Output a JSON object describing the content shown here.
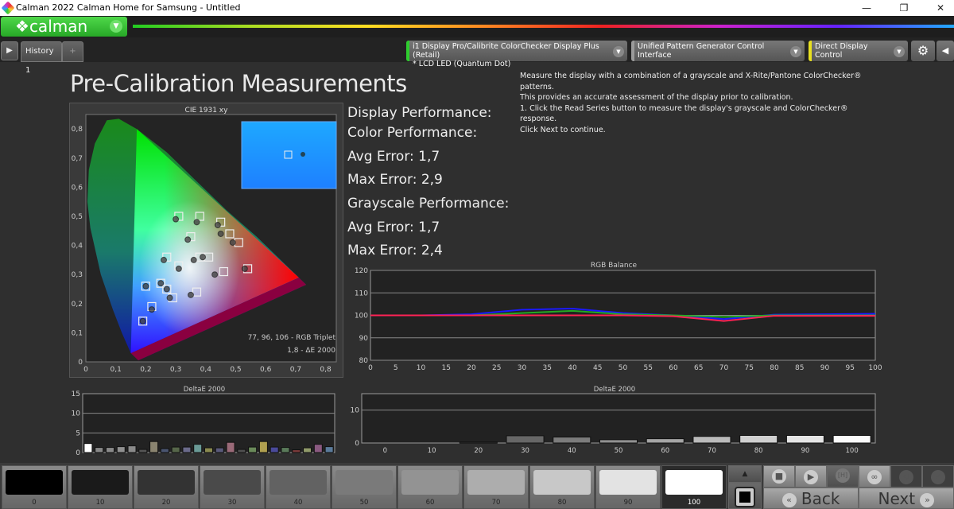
{
  "window": {
    "title": "Calman 2022 Calman Home for Samsung  - Untitled",
    "minimize": "—",
    "maximize": "❐",
    "close": "✕"
  },
  "logo": {
    "text": "calman",
    "icon": "diamond-logo-icon"
  },
  "tabs": {
    "history": "History 1",
    "add": "+"
  },
  "devices": [
    {
      "line1": "i1 Display Pro/Calibrite ColorChecker Display Plus (Retail)",
      "line2": "* LCD LED (Quantum Dot)",
      "accent": "#2ecc2e"
    },
    {
      "line1": "Unified Pattern Generator Control Interface",
      "line2": "",
      "accent": "#9a9a9a"
    },
    {
      "line1": "Direct Display Control",
      "line2": "",
      "accent": "#e8e020"
    }
  ],
  "page": {
    "title": "Pre-Calibration Measurements",
    "instructions": [
      "Measure the display with a combination of a grayscale and X-Rite/Pantone ColorChecker® patterns.",
      "This provides an accurate assessment of the display prior to calibration.",
      "1. Click the Read Series button to measure the display's grayscale and ColorChecker® response.",
      "Click Next to continue."
    ]
  },
  "performance": {
    "display": "Display Performance:",
    "color": "Color Performance:",
    "color_avg": "Avg Error: 1,7",
    "color_max": "Max Error: 2,9",
    "grayscale": "Grayscale Performance:",
    "gray_avg": "Avg Error: 1,7",
    "gray_max": "Max Error: 2,4"
  },
  "chart_data": [
    {
      "type": "scatter",
      "title": "CIE 1931 xy",
      "xlim": [
        0,
        0.85
      ],
      "ylim": [
        0,
        0.85
      ],
      "xticks": [
        "0",
        "0,1",
        "0,2",
        "0,3",
        "0,4",
        "0,5",
        "0,6",
        "0,7",
        "0,8"
      ],
      "yticks": [
        "0",
        "0,1",
        "0,2",
        "0,3",
        "0,4",
        "0,5",
        "0,6",
        "0,7",
        "0,8"
      ],
      "gamut": {
        "red": [
          0.71,
          0.29
        ],
        "green": [
          0.17,
          0.8
        ],
        "blue": [
          0.15,
          0.03
        ]
      },
      "targets": [
        [
          0.31,
          0.5
        ],
        [
          0.38,
          0.5
        ],
        [
          0.45,
          0.48
        ],
        [
          0.48,
          0.44
        ],
        [
          0.51,
          0.41
        ],
        [
          0.35,
          0.43
        ],
        [
          0.27,
          0.36
        ],
        [
          0.38,
          0.36
        ],
        [
          0.41,
          0.36
        ],
        [
          0.31,
          0.33
        ],
        [
          0.46,
          0.31
        ],
        [
          0.54,
          0.32
        ],
        [
          0.2,
          0.26
        ],
        [
          0.25,
          0.27
        ],
        [
          0.27,
          0.25
        ],
        [
          0.29,
          0.22
        ],
        [
          0.37,
          0.24
        ],
        [
          0.22,
          0.19
        ],
        [
          0.19,
          0.14
        ]
      ],
      "measured": [
        [
          0.3,
          0.49
        ],
        [
          0.37,
          0.48
        ],
        [
          0.44,
          0.47
        ],
        [
          0.45,
          0.44
        ],
        [
          0.49,
          0.41
        ],
        [
          0.34,
          0.42
        ],
        [
          0.26,
          0.35
        ],
        [
          0.36,
          0.35
        ],
        [
          0.39,
          0.36
        ],
        [
          0.31,
          0.32
        ],
        [
          0.43,
          0.3
        ],
        [
          0.53,
          0.32
        ],
        [
          0.2,
          0.26
        ],
        [
          0.25,
          0.27
        ],
        [
          0.27,
          0.25
        ],
        [
          0.28,
          0.22
        ],
        [
          0.35,
          0.23
        ],
        [
          0.22,
          0.18
        ],
        [
          0.19,
          0.14
        ]
      ],
      "annotation1": "77, 96, 106 - RGB Triplet",
      "annotation2": "1,8 - ΔE 2000",
      "swatch_color": "#1e90ff"
    },
    {
      "type": "line",
      "title": "RGB Balance",
      "xlim": [
        0,
        100
      ],
      "ylim": [
        80,
        120
      ],
      "xticks": [
        "0",
        "5",
        "10",
        "15",
        "20",
        "25",
        "30",
        "35",
        "40",
        "45",
        "50",
        "55",
        "60",
        "65",
        "70",
        "75",
        "80",
        "85",
        "90",
        "95",
        "100"
      ],
      "yticks": [
        "80",
        "90",
        "100",
        "110",
        "120"
      ],
      "x": [
        0,
        10,
        20,
        30,
        40,
        50,
        60,
        70,
        80,
        90,
        100
      ],
      "series": [
        {
          "color": "#1a1aff",
          "values": [
            100,
            100,
            100.5,
            102.5,
            103,
            101,
            100,
            98.3,
            100.3,
            100.5,
            100.7
          ]
        },
        {
          "color": "#22aa22",
          "values": [
            100,
            100,
            100,
            101,
            102,
            100.5,
            100,
            99.3,
            100,
            100,
            100
          ]
        },
        {
          "color": "#ff2255",
          "values": [
            100,
            100,
            100,
            100,
            100,
            100,
            99.6,
            97.5,
            99.8,
            99.8,
            99.8
          ]
        }
      ]
    },
    {
      "type": "bar",
      "title": "DeltaE 2000",
      "ylim": [
        0,
        15
      ],
      "yticks": [
        "0",
        "5",
        "10",
        "15"
      ],
      "values": [
        2.3,
        1.3,
        1.3,
        1.5,
        1.7,
        0.8,
        2.8,
        1.0,
        1.4,
        1.4,
        2.1,
        1.2,
        1.2,
        2.6,
        0.8,
        1.4,
        2.8,
        1.4,
        1.3,
        0.7,
        1.2,
        2.1,
        1.5
      ],
      "colors": [
        "#ffffff",
        "#888888",
        "#8a8a8a",
        "#909090",
        "#8a8a8a",
        "#555555",
        "#8a8470",
        "#4a5570",
        "#56664a",
        "#6a6a8a",
        "#6a9a96",
        "#8a8a50",
        "#5a5a7a",
        "#9a6a78",
        "#505050",
        "#6a8a5a",
        "#b0a050",
        "#4a4a9a",
        "#5a7a5a",
        "#7a3a3a",
        "#909a6a",
        "#8a5a80",
        "#5a7a9a"
      ]
    },
    {
      "type": "bar",
      "title": "DeltaE 2000",
      "ylim": [
        0,
        15
      ],
      "yticks": [
        "0",
        "10"
      ],
      "categories": [
        "0",
        "10",
        "20",
        "30",
        "40",
        "50",
        "60",
        "70",
        "80",
        "90",
        "100"
      ],
      "values": [
        0,
        0,
        0.3,
        2.2,
        1.8,
        1.0,
        1.3,
        2.0,
        2.3,
        2.3,
        2.3
      ]
    }
  ],
  "swatches": [
    {
      "label": "0",
      "color": "#000000"
    },
    {
      "label": "10",
      "color": "#1a1a1a"
    },
    {
      "label": "20",
      "color": "#333333"
    },
    {
      "label": "30",
      "color": "#4a4a4a"
    },
    {
      "label": "40",
      "color": "#626262"
    },
    {
      "label": "50",
      "color": "#7a7a7a"
    },
    {
      "label": "60",
      "color": "#939393"
    },
    {
      "label": "70",
      "color": "#adadad"
    },
    {
      "label": "80",
      "color": "#c8c8c8"
    },
    {
      "label": "90",
      "color": "#e3e3e3"
    },
    {
      "label": "100",
      "color": "#ffffff"
    }
  ],
  "selected_swatch": "100",
  "controls": {
    "back": "Back",
    "next": "Next",
    "back_icon": "«",
    "next_icon": "»",
    "stop": "■",
    "play": "▶",
    "measure": "[H]",
    "loop": "∞",
    "refresh": "↻",
    "check": "✓",
    "up": "▲"
  }
}
